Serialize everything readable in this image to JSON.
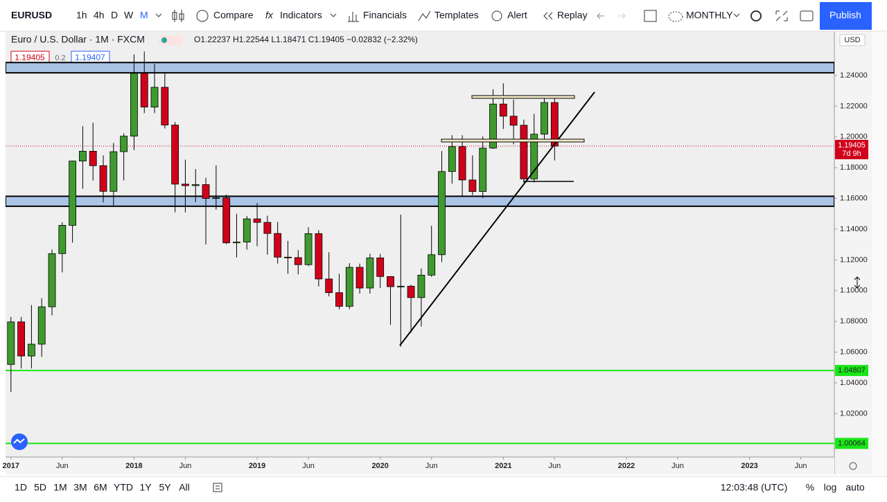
{
  "toolbar": {
    "symbol": "EURUSD",
    "intervals": [
      "1h",
      "4h",
      "D",
      "W",
      "M"
    ],
    "compare": "Compare",
    "indicators": "Indicators",
    "financials": "Financials",
    "templates": "Templates",
    "alert": "Alert",
    "replay": "Replay",
    "layout": "MONTHLY",
    "publish": "Publish"
  },
  "legend": {
    "name": "Euro / U.S. Dollar · 1M · FXCM",
    "ohlc": "O1.22237 H1.22544 L1.18471 C1.19405 −0.02832 (−2.32%)",
    "sell": "1.19405",
    "spread": "0.2",
    "buy": "1.19407"
  },
  "chart_data": {
    "type": "candlestick",
    "currency": "USD",
    "up_color": "#3f9a2f",
    "down_color": "#d0021b",
    "x": [
      "2017-01",
      "2017-02",
      "2017-03",
      "2017-04",
      "2017-05",
      "2017-06",
      "2017-07",
      "2017-08",
      "2017-09",
      "2017-10",
      "2017-11",
      "2017-12",
      "2018-01",
      "2018-02",
      "2018-03",
      "2018-04",
      "2018-05",
      "2018-06",
      "2018-07",
      "2018-08",
      "2018-09",
      "2018-10",
      "2018-11",
      "2018-12",
      "2019-01",
      "2019-02",
      "2019-03",
      "2019-04",
      "2019-05",
      "2019-06",
      "2019-07",
      "2019-08",
      "2019-09",
      "2019-10",
      "2019-11",
      "2019-12",
      "2020-01",
      "2020-02",
      "2020-03",
      "2020-04",
      "2020-05",
      "2020-06",
      "2020-07",
      "2020-08",
      "2020-09",
      "2020-10",
      "2020-11",
      "2020-12",
      "2021-01",
      "2021-02",
      "2021-03",
      "2021-04",
      "2021-05",
      "2021-06"
    ],
    "open": [
      1.052,
      1.0797,
      1.0575,
      1.0652,
      1.0895,
      1.1241,
      1.1425,
      1.1843,
      1.1907,
      1.1813,
      1.1646,
      1.1904,
      1.2005,
      1.2414,
      1.2194,
      1.2323,
      1.2077,
      1.1693,
      1.1683,
      1.169,
      1.16,
      1.1604,
      1.1311,
      1.1316,
      1.1467,
      1.1444,
      1.1372,
      1.1218,
      1.1215,
      1.1169,
      1.1371,
      1.1076,
      1.0987,
      1.0898,
      1.1152,
      1.1017,
      1.1213,
      1.1092,
      1.1026,
      1.1029,
      1.0955,
      1.1101,
      1.1234,
      1.1775,
      1.1937,
      1.172,
      1.1645,
      1.1927,
      1.2214,
      1.2135,
      1.2076,
      1.1727,
      1.2018,
      1.22237
    ],
    "high": [
      1.0829,
      1.0829,
      1.0906,
      1.0951,
      1.1268,
      1.1445,
      1.1846,
      1.207,
      1.2092,
      1.188,
      1.1961,
      1.2023,
      1.2537,
      1.2556,
      1.2476,
      1.2414,
      1.2097,
      1.1852,
      1.1791,
      1.1734,
      1.1815,
      1.1625,
      1.15,
      1.1486,
      1.157,
      1.1488,
      1.1448,
      1.1324,
      1.1264,
      1.1412,
      1.1393,
      1.125,
      1.111,
      1.1179,
      1.1176,
      1.124,
      1.1239,
      1.1095,
      1.1495,
      1.1039,
      1.1145,
      1.1422,
      1.1908,
      1.2011,
      1.2011,
      1.188,
      1.2003,
      1.231,
      1.2349,
      1.2243,
      1.2113,
      1.215,
      1.2266,
      1.22544
    ],
    "low": [
      1.034,
      1.0494,
      1.0494,
      1.0569,
      1.0839,
      1.1119,
      1.1312,
      1.1662,
      1.1717,
      1.1574,
      1.1554,
      1.1717,
      1.1915,
      1.2155,
      1.2155,
      1.2055,
      1.151,
      1.1509,
      1.1575,
      1.1301,
      1.1527,
      1.1302,
      1.1216,
      1.1267,
      1.1289,
      1.1234,
      1.1176,
      1.111,
      1.1106,
      1.116,
      1.1028,
      1.0963,
      1.0879,
      1.088,
      1.0981,
      1.0981,
      1.1017,
      1.0778,
      1.0636,
      1.0727,
      1.0767,
      1.109,
      1.1186,
      1.1696,
      1.1612,
      1.1622,
      1.1602,
      1.1922,
      1.2052,
      1.1952,
      1.1704,
      1.1704,
      1.1986,
      1.18471
    ],
    "close": [
      1.0797,
      1.0575,
      1.0652,
      1.0895,
      1.1241,
      1.1425,
      1.1843,
      1.1907,
      1.1813,
      1.1646,
      1.1904,
      1.2005,
      1.2414,
      1.2194,
      1.2323,
      1.2077,
      1.1693,
      1.1683,
      1.169,
      1.16,
      1.1604,
      1.1311,
      1.1316,
      1.1467,
      1.1444,
      1.1372,
      1.1218,
      1.1215,
      1.1169,
      1.1371,
      1.1076,
      1.0987,
      1.0898,
      1.1152,
      1.1017,
      1.1213,
      1.1092,
      1.1026,
      1.1029,
      1.0955,
      1.1101,
      1.1234,
      1.1775,
      1.1937,
      1.172,
      1.1645,
      1.1927,
      1.2214,
      1.2135,
      1.2076,
      1.1727,
      1.2018,
      1.2224,
      1.19405
    ],
    "xlim": [
      "2016-12",
      "2023-09"
    ],
    "xticks": [
      {
        "value": "2017-01",
        "label": "2017"
      },
      {
        "value": "2017-06",
        "label": "Jun"
      },
      {
        "value": "2018-01",
        "label": "2018"
      },
      {
        "value": "2018-06",
        "label": "Jun"
      },
      {
        "value": "2019-01",
        "label": "2019"
      },
      {
        "value": "2019-06",
        "label": "Jun"
      },
      {
        "value": "2020-01",
        "label": "2020"
      },
      {
        "value": "2020-06",
        "label": "Jun"
      },
      {
        "value": "2021-01",
        "label": "2021"
      },
      {
        "value": "2021-06",
        "label": "Jun"
      },
      {
        "value": "2022-01",
        "label": "2022"
      },
      {
        "value": "2022-06",
        "label": "Jun"
      },
      {
        "value": "2023-01",
        "label": "2023"
      },
      {
        "value": "2023-06",
        "label": "Jun"
      }
    ],
    "ylim": [
      0.9918,
      1.2688
    ],
    "yticks": [
      {
        "value": 1.02,
        "label": "1.02000"
      },
      {
        "value": 1.04,
        "label": "1.04000"
      },
      {
        "value": 1.06,
        "label": "1.06000"
      },
      {
        "value": 1.08,
        "label": "1.08000"
      },
      {
        "value": 1.1,
        "label": "1.10000"
      },
      {
        "value": 1.12,
        "label": "1.12000"
      },
      {
        "value": 1.14,
        "label": "1.14000"
      },
      {
        "value": 1.16,
        "label": "1.16000"
      },
      {
        "value": 1.18,
        "label": "1.18000"
      },
      {
        "value": 1.2,
        "label": "1.20000"
      },
      {
        "value": 1.22,
        "label": "1.22000"
      },
      {
        "value": 1.24,
        "label": "1.24000"
      }
    ],
    "zones": [
      {
        "from": 1.2417,
        "to": 1.2484,
        "color": "#aac4e6"
      },
      {
        "from": 1.1549,
        "to": 1.1614,
        "color": "#aac4e6"
      }
    ],
    "hlines": [
      {
        "value": 1.04807,
        "color": "#19e619"
      },
      {
        "value": 1.00064,
        "color": "#19e619"
      }
    ],
    "last_price": {
      "value": 1.19405,
      "countdown": "7d 9h",
      "color": "#d0021b"
    }
  },
  "footer": {
    "ranges": [
      "1D",
      "5D",
      "1M",
      "3M",
      "6M",
      "YTD",
      "1Y",
      "5Y",
      "All"
    ],
    "clock": "12:03:48 (UTC)",
    "percent": "%",
    "log": "log",
    "auto": "auto"
  }
}
